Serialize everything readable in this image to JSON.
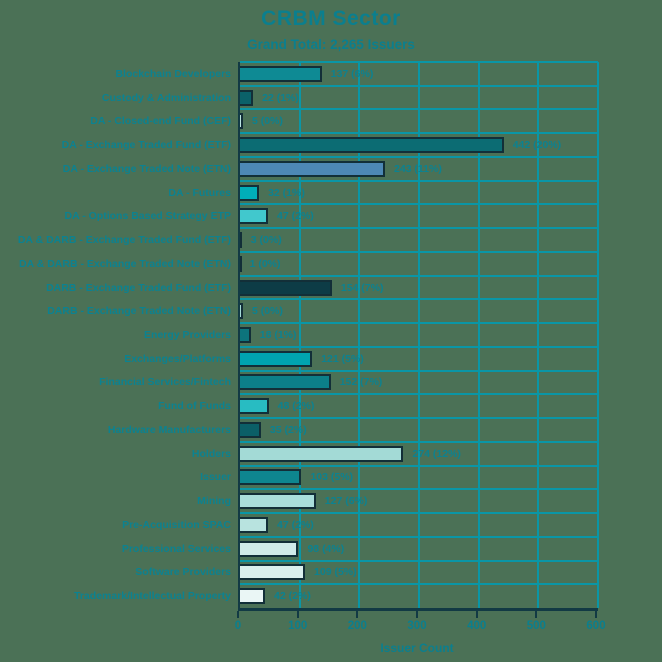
{
  "title": "CRBM Sector",
  "subtitle": "Grand Total: 2,265 Issuers",
  "chart_data": {
    "type": "bar",
    "orientation": "horizontal",
    "title": "CRBM Sector",
    "subtitle": "Grand Total: 2,265 Issuers",
    "xlabel": "Issuer Count",
    "xlim": [
      0,
      600
    ],
    "xticks": [
      0,
      100,
      200,
      300,
      400,
      500,
      600
    ],
    "grid": true,
    "legend": false,
    "grand_total": 2265,
    "categories": [
      "Blockchain Developers",
      "Custody & Administration",
      "DA - Closed-end Fund (CEF)",
      "DA - Exchange Traded Fund (ETF)",
      "DA - Exchange Traded Note (ETN)",
      "DA - Futures",
      "DA - Options Based Strategy ETP",
      "DA & DARB - Exchange Traded Fund (ETF)",
      "DA & DARB - Exchange Traded Note (ETN)",
      "DARB - Exchange Traded Fund (ETF)",
      "DARB - Exchange Traded Note (ETN)",
      "Energy Providers",
      "Exchanges/Platforms",
      "Financial Services/Fintech",
      "Fund of Funds",
      "Hardware Manufacturers",
      "Holders",
      "Issuer",
      "Mining",
      "Pre-Acquisition SPAC",
      "Professional Services",
      "Software Providers",
      "Trademark/Intellectual Property"
    ],
    "values": [
      137,
      22,
      5,
      442,
      243,
      32,
      47,
      3,
      1,
      154,
      5,
      18,
      121,
      152,
      48,
      35,
      274,
      103,
      127,
      47,
      98,
      109,
      42
    ],
    "value_labels": [
      "137 (6%)",
      "22 (1%)",
      "5 (0%)",
      "442 (20%)",
      "243 (11%)",
      "32 (1%)",
      "47 (2%)",
      "3 (0%)",
      "1 (0%)",
      "154 (7%)",
      "5 (0%)",
      "18 (1%)",
      "121 (5%)",
      "152 (7%)",
      "48 (2%)",
      "35 (2%)",
      "274 (12%)",
      "103 (5%)",
      "127 (6%)",
      "47 (2%)",
      "98 (4%)",
      "109 (5%)",
      "42 (2%)"
    ],
    "bar_colors": [
      "#0e8a94",
      "#0b6169",
      "#bce6e3",
      "#0c6c73",
      "#4d88b5",
      "#00aeb9",
      "#41c8cd",
      "#e6f4f3",
      "#e6f4f3",
      "#0d3c46",
      "#a5dcd8",
      "#0d747c",
      "#00a4af",
      "#0c7f89",
      "#28bcc2",
      "#0b5f67",
      "#a3dad6",
      "#0e868f",
      "#a9dedb",
      "#b8e3df",
      "#d0ebe9",
      "#daf0ee",
      "#eaf6f5"
    ]
  },
  "colors": {
    "background": "#4b7156",
    "grid": "#0a96a6",
    "axis": "#123a44",
    "text": "#0b7f8e",
    "bar_border": "#122f38"
  }
}
